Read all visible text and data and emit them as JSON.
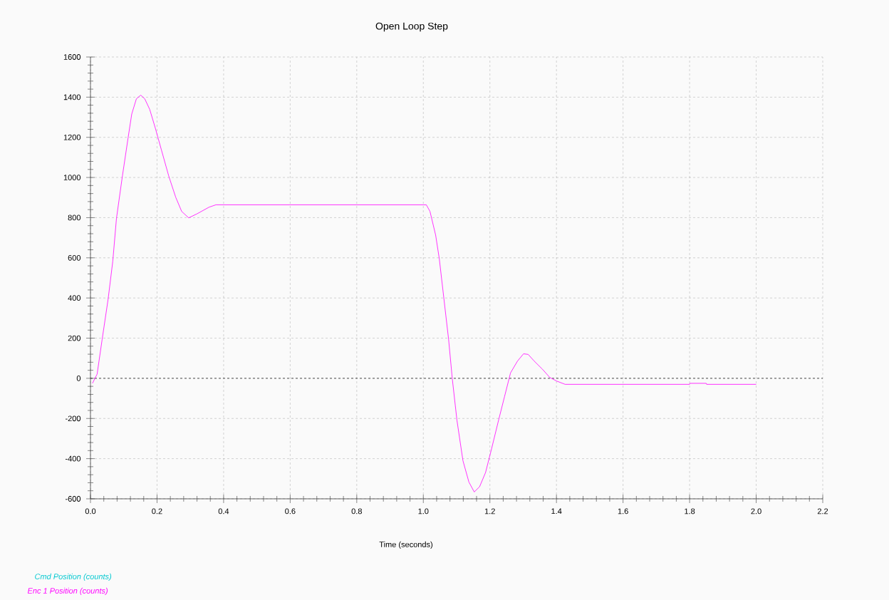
{
  "chart_data": {
    "type": "line",
    "title": "Open Loop Step",
    "xlabel": "Time (seconds)",
    "xlim": [
      0,
      2.2
    ],
    "ylim": [
      -600,
      1600
    ],
    "xticks": [
      {
        "value": 0,
        "label": "0.0"
      },
      {
        "value": 0.2,
        "label": "0.2"
      },
      {
        "value": 0.4,
        "label": "0.4"
      },
      {
        "value": 0.6,
        "label": "0.6"
      },
      {
        "value": 0.8,
        "label": "0.8"
      },
      {
        "value": 1,
        "label": "1.0"
      },
      {
        "value": 1.2,
        "label": "1.2"
      },
      {
        "value": 1.4,
        "label": "1.4"
      },
      {
        "value": 1.6,
        "label": "1.6"
      },
      {
        "value": 1.8,
        "label": "1.8"
      },
      {
        "value": 2,
        "label": "2.0"
      },
      {
        "value": 2.2,
        "label": "2.2"
      }
    ],
    "yticks": [
      -600,
      -400,
      -200,
      0,
      200,
      400,
      600,
      800,
      1000,
      1200,
      1400,
      1600
    ],
    "grid": true,
    "legend": "bottom left",
    "marker": "none",
    "line_style": "solid",
    "ref_lines": [
      {
        "axis": "y",
        "value": 0,
        "color": "#333333",
        "line_style": "dashed"
      }
    ],
    "series": [
      {
        "name": "Cmd Position (counts)",
        "color": "#00c8d0"
      },
      {
        "name": "Enc 1 Position (counts)",
        "color": "#ff00ff",
        "x": [
          0.006,
          0.02,
          0.035,
          0.053,
          0.067,
          0.078,
          0.096,
          0.113,
          0.124,
          0.138,
          0.151,
          0.163,
          0.178,
          0.195,
          0.213,
          0.235,
          0.256,
          0.274,
          0.295,
          0.32,
          0.356,
          0.377,
          1.0,
          1.009,
          1.02,
          1.037,
          1.048,
          1.062,
          1.076,
          1.087,
          1.101,
          1.119,
          1.137,
          1.153,
          1.169,
          1.187,
          1.205,
          1.226,
          1.244,
          1.262,
          1.283,
          1.301,
          1.315,
          1.333,
          1.358,
          1.38,
          1.401,
          1.426,
          1.8,
          1.801,
          1.85,
          1.851,
          2.0
        ],
        "values": [
          -25,
          21,
          193,
          394,
          583,
          795,
          1008,
          1197,
          1316,
          1392,
          1410,
          1392,
          1339,
          1245,
          1138,
          1008,
          902,
          831,
          799,
          819,
          852,
          864,
          864,
          864,
          831,
          713,
          595,
          394,
          193,
          -2,
          -209,
          -410,
          -517,
          -566,
          -540,
          -469,
          -351,
          -209,
          -91,
          27,
          86,
          122,
          119,
          86,
          45,
          4,
          -14,
          -30,
          -30,
          -25,
          -25,
          -30,
          -30
        ]
      }
    ]
  }
}
